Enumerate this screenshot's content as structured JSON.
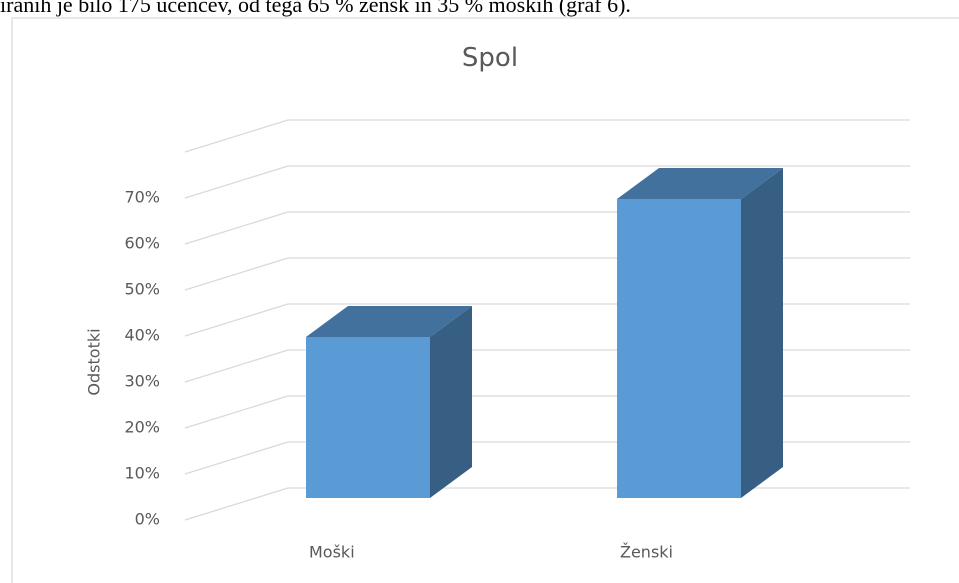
{
  "page_text": "iranih je bilo 175 učencev, od tega 65 % žensk in 35 % moških (graf 6).",
  "chart_data": {
    "type": "bar3d",
    "title": "Spol",
    "y_label": "Odstotki",
    "categories": [
      "Moški",
      "Ženski"
    ],
    "values": [
      35,
      65
    ],
    "color": "#5b9bd5",
    "ylim": [
      0,
      80
    ],
    "yticks": [
      {
        "value": 0,
        "label": "0%"
      },
      {
        "value": 10,
        "label": "10%"
      },
      {
        "value": 20,
        "label": "20%"
      },
      {
        "value": 30,
        "label": "30%"
      },
      {
        "value": 40,
        "label": "40%"
      },
      {
        "value": 50,
        "label": "50%"
      },
      {
        "value": 60,
        "label": "60%"
      },
      {
        "value": 70,
        "label": "70%"
      }
    ],
    "grid": true
  }
}
